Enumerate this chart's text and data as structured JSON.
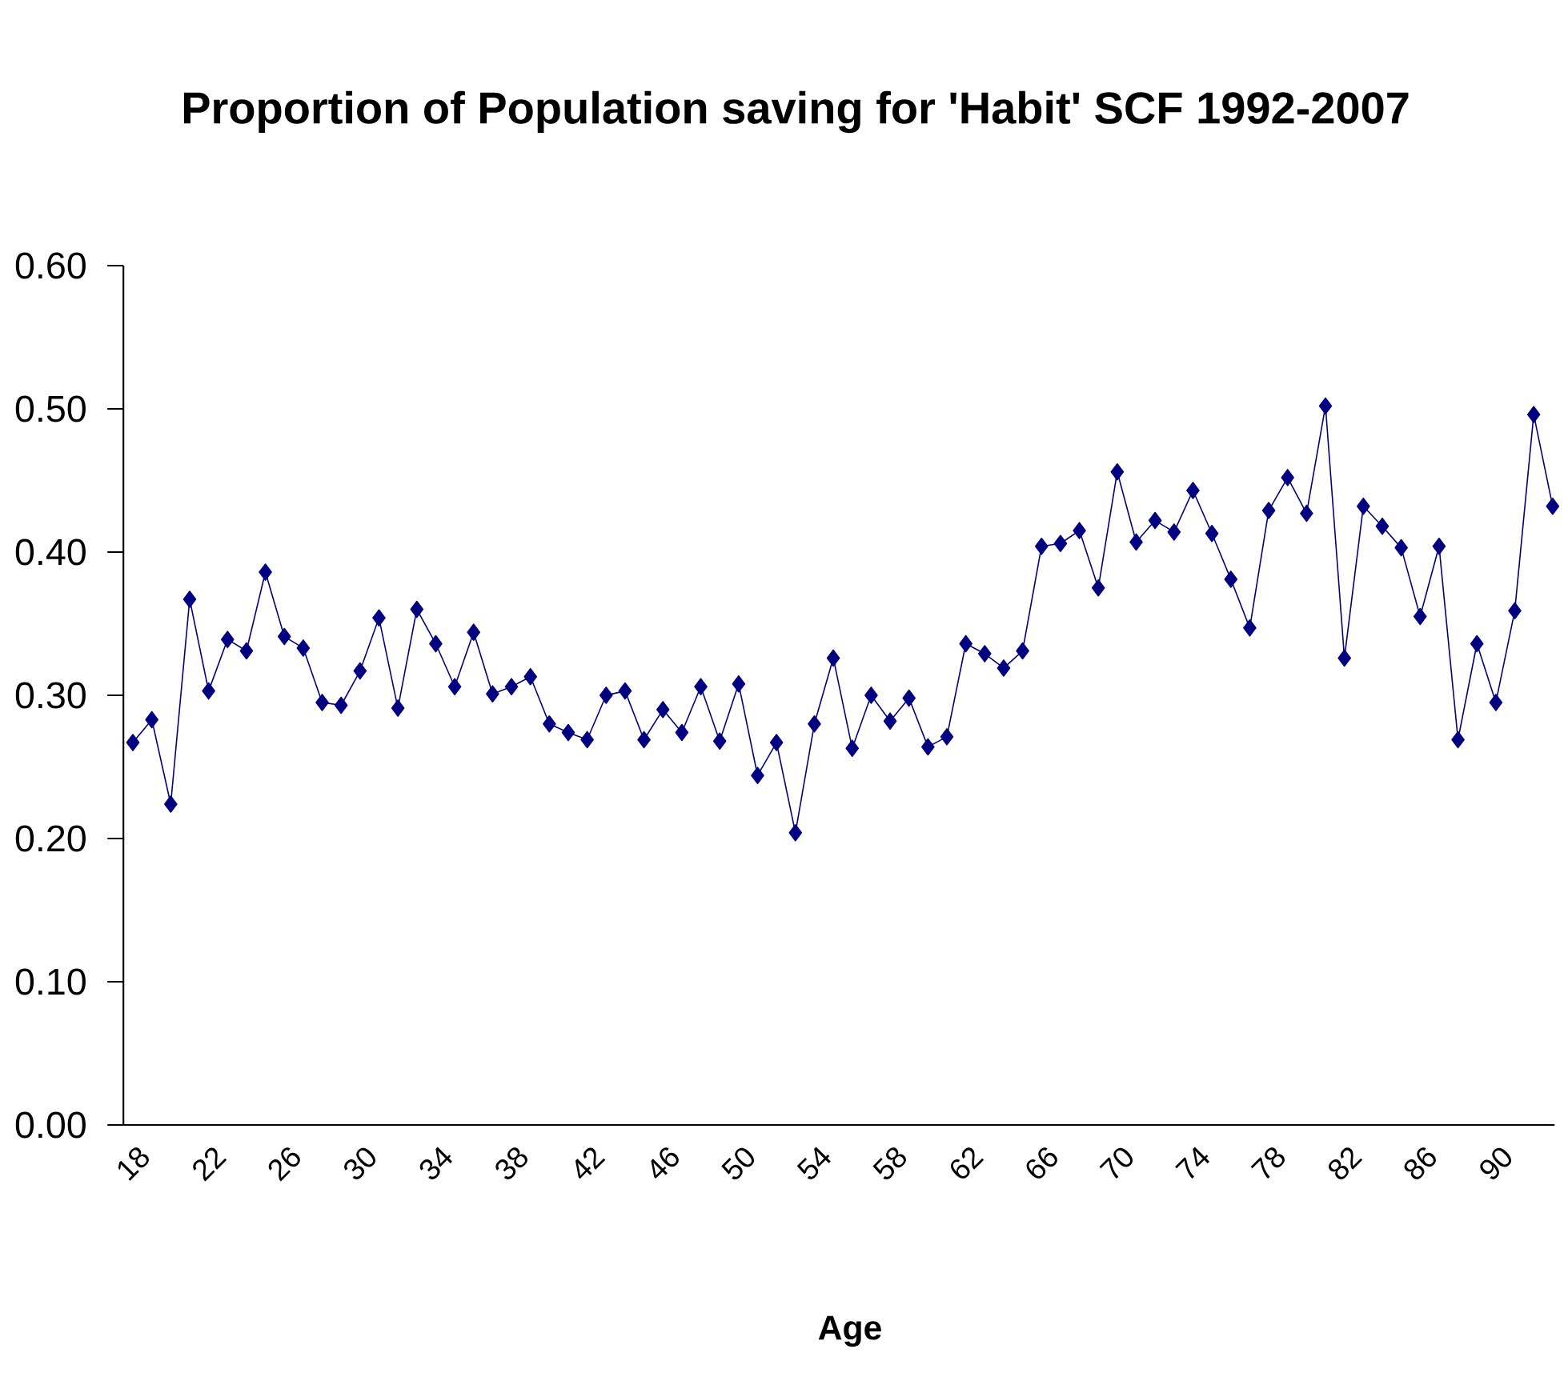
{
  "chart_data": {
    "type": "line",
    "title": "Proportion of Population saving for 'Habit' SCF 1992-2007",
    "xlabel": "Age",
    "categories": [
      "18",
      null,
      null,
      null,
      "22",
      null,
      null,
      null,
      "26",
      null,
      null,
      null,
      "30",
      null,
      null,
      null,
      "34",
      null,
      null,
      null,
      "38",
      null,
      null,
      null,
      "42",
      null,
      null,
      null,
      "46",
      null,
      null,
      null,
      "50",
      null,
      null,
      null,
      "54",
      null,
      null,
      null,
      "58",
      null,
      null,
      null,
      "62",
      null,
      null,
      null,
      "66",
      null,
      null,
      null,
      "70",
      null,
      null,
      null,
      "74",
      null,
      null,
      null,
      "78",
      null,
      null,
      null,
      "82",
      null,
      null,
      null,
      "86",
      null,
      null,
      null,
      "90",
      null,
      null,
      null
    ],
    "series": [
      {
        "color": "#000080",
        "values": [
          0.267,
          0.283,
          0.224,
          0.367,
          0.303,
          0.339,
          0.331,
          0.386,
          0.341,
          0.333,
          0.295,
          0.293,
          0.317,
          0.354,
          0.291,
          0.36,
          0.336,
          0.306,
          0.344,
          0.301,
          0.306,
          0.313,
          0.28,
          0.274,
          0.269,
          0.3,
          0.303,
          0.269,
          0.29,
          0.274,
          0.306,
          0.268,
          0.308,
          0.244,
          0.267,
          0.204,
          0.28,
          0.326,
          0.263,
          0.3,
          0.282,
          0.298,
          0.264,
          0.271,
          0.336,
          0.329,
          0.319,
          0.331,
          0.404,
          0.406,
          0.415,
          0.375,
          0.456,
          0.407,
          0.422,
          0.414,
          0.443,
          0.413,
          0.381,
          0.347,
          0.429,
          0.452,
          0.427,
          0.502,
          0.326,
          0.432,
          0.418,
          0.403,
          0.355,
          0.404,
          0.269,
          0.336,
          0.295,
          0.359,
          0.496,
          0.432
        ]
      }
    ],
    "ylim": [
      0,
      0.6
    ],
    "yticks": [
      {
        "value": 0,
        "label": "0.00"
      },
      {
        "value": 0.1,
        "label": "0.10"
      },
      {
        "value": 0.2,
        "label": "0.20"
      },
      {
        "value": 0.3,
        "label": "0.30"
      },
      {
        "value": 0.4,
        "label": "0.40"
      },
      {
        "value": 0.5,
        "label": "0.50"
      },
      {
        "value": 0.6,
        "label": "0.60"
      }
    ],
    "marker": "diamond"
  }
}
